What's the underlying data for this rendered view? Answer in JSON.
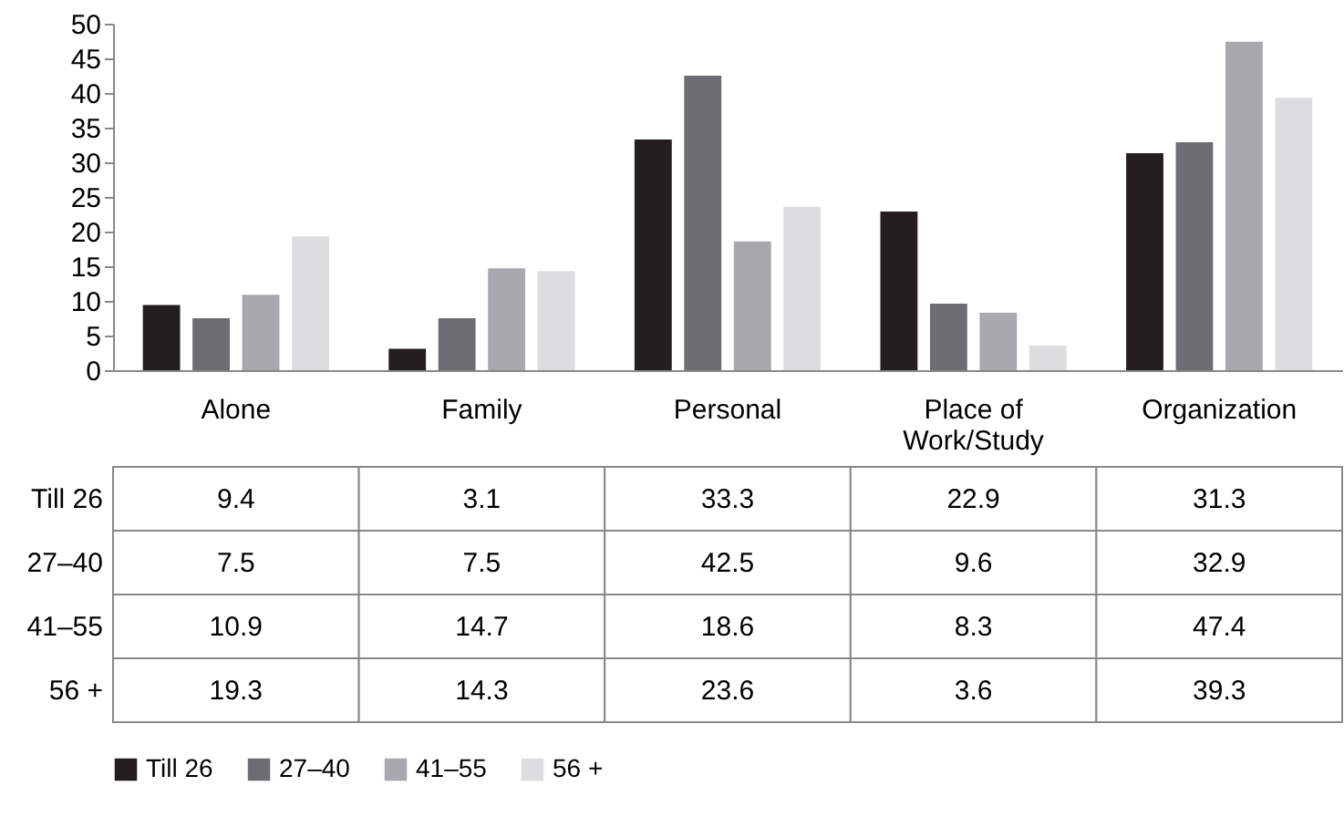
{
  "chart_data": {
    "type": "bar",
    "categories": [
      "Alone",
      "Family",
      "Personal",
      "Place of Work/Study",
      "Organization"
    ],
    "series": [
      {
        "name": "Till 26",
        "color": "#231f20",
        "values": [
          9.4,
          3.1,
          33.3,
          22.9,
          31.3
        ]
      },
      {
        "name": "27–40",
        "color": "#6d6e71",
        "values": [
          7.5,
          7.5,
          42.5,
          9.6,
          32.9
        ]
      },
      {
        "name": "41–55",
        "color": "#a7a9ac",
        "values": [
          10.9,
          14.7,
          18.6,
          8.3,
          47.4
        ]
      },
      {
        "name": "56 +",
        "color": "#dcddde",
        "values": [
          19.3,
          14.3,
          23.6,
          3.6,
          39.3
        ]
      }
    ],
    "ylim": [
      0,
      50
    ],
    "yticks": [
      0,
      5,
      10,
      15,
      20,
      25,
      30,
      35,
      40,
      45,
      50
    ],
    "data_labels": true,
    "legend": "bottom"
  }
}
